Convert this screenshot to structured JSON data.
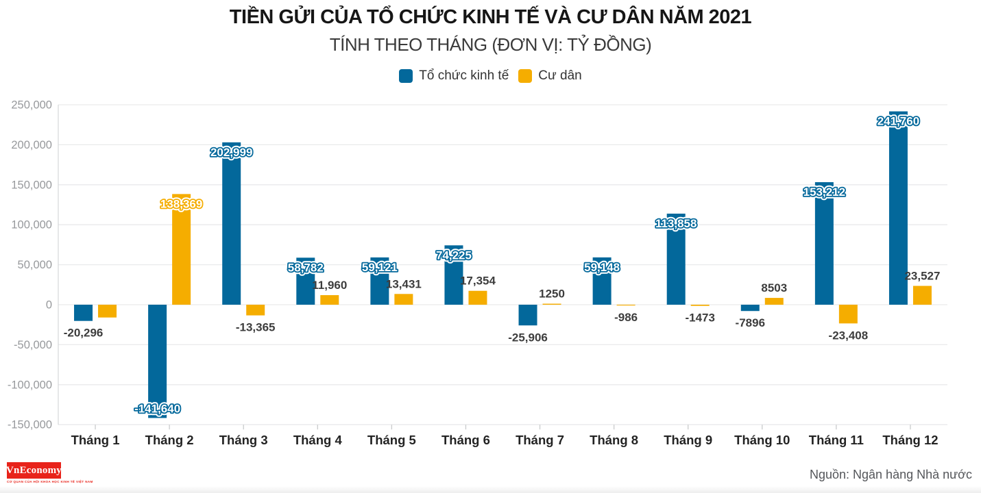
{
  "chart_data": {
    "type": "bar",
    "title": "TIỀN GỬI CỦA TỔ CHỨC KINH TẾ VÀ CƯ DÂN NĂM 2021",
    "subtitle": "TÍNH THEO THÁNG (ĐƠN VỊ: TỶ ĐỒNG)",
    "unit": "tỷ đồng",
    "legend_position": "top",
    "grid": true,
    "categories": [
      "Tháng 1",
      "Tháng 2",
      "Tháng 3",
      "Tháng 4",
      "Tháng 5",
      "Tháng 6",
      "Tháng 7",
      "Tháng 8",
      "Tháng 9",
      "Tháng 10",
      "Tháng 11",
      "Tháng 12"
    ],
    "series": [
      {
        "name": "Tổ chức kinh tế",
        "color": "#03689b",
        "values": [
          -20296,
          -141640,
          202999,
          58782,
          59121,
          74225,
          -25906,
          59148,
          113858,
          -7896,
          153212,
          241760
        ],
        "labels": [
          "-20,296",
          "-141,640",
          "202,999",
          "58,782",
          "59,121",
          "74,225",
          "-25,906",
          "59,148",
          "113,858",
          "-7896",
          "153,212",
          "241,760"
        ],
        "label_styles": [
          "plain",
          "outlined",
          "outlined",
          "outlined",
          "outlined",
          "outlined",
          "plain",
          "outlined",
          "outlined",
          "plain",
          "outlined",
          "outlined"
        ]
      },
      {
        "name": "Cư dân",
        "color": "#f5ad00",
        "values": [
          -16000,
          138369,
          -13365,
          11960,
          13431,
          17354,
          1250,
          -986,
          -1473,
          8503,
          -23408,
          23527
        ],
        "labels": [
          "",
          "138,369",
          "-13,365",
          "11,960",
          "13,431",
          "17,354",
          "1250",
          "-986",
          "-1473",
          "8503",
          "-23,408",
          "23,527"
        ],
        "label_styles": [
          "none",
          "outlined",
          "plain",
          "plain",
          "plain",
          "plain",
          "plain",
          "plain",
          "plain",
          "plain",
          "plain",
          "plain"
        ]
      }
    ],
    "y_axis": {
      "range": [
        -150000,
        250000
      ],
      "tick_step": 50000,
      "ticks": [
        {
          "value": 250000,
          "label": "250,000"
        },
        {
          "value": 200000,
          "label": "200,000"
        },
        {
          "value": 150000,
          "label": "150,000"
        },
        {
          "value": 100000,
          "label": "100,000"
        },
        {
          "value": 50000,
          "label": "50,000"
        },
        {
          "value": 0,
          "label": "0"
        },
        {
          "value": -50000,
          "label": "-50,000"
        },
        {
          "value": -100000,
          "label": "-100,000"
        },
        {
          "value": -150000,
          "label": "-150,000"
        }
      ]
    },
    "colors": {
      "gridline": "#e9eaeb",
      "axis_line": "#d8dadb",
      "y_tick_text": "#97999c",
      "x_label_text": "#232323",
      "plain_value_text": "#3d3d3d"
    }
  },
  "footer": {
    "logo_text": "VnEconomy",
    "logo_caption": "CƠ QUAN CỦA HỘI KHOA HỌC KINH TẾ VIỆT NAM",
    "source": "Nguồn: Ngân hàng Nhà nước"
  }
}
